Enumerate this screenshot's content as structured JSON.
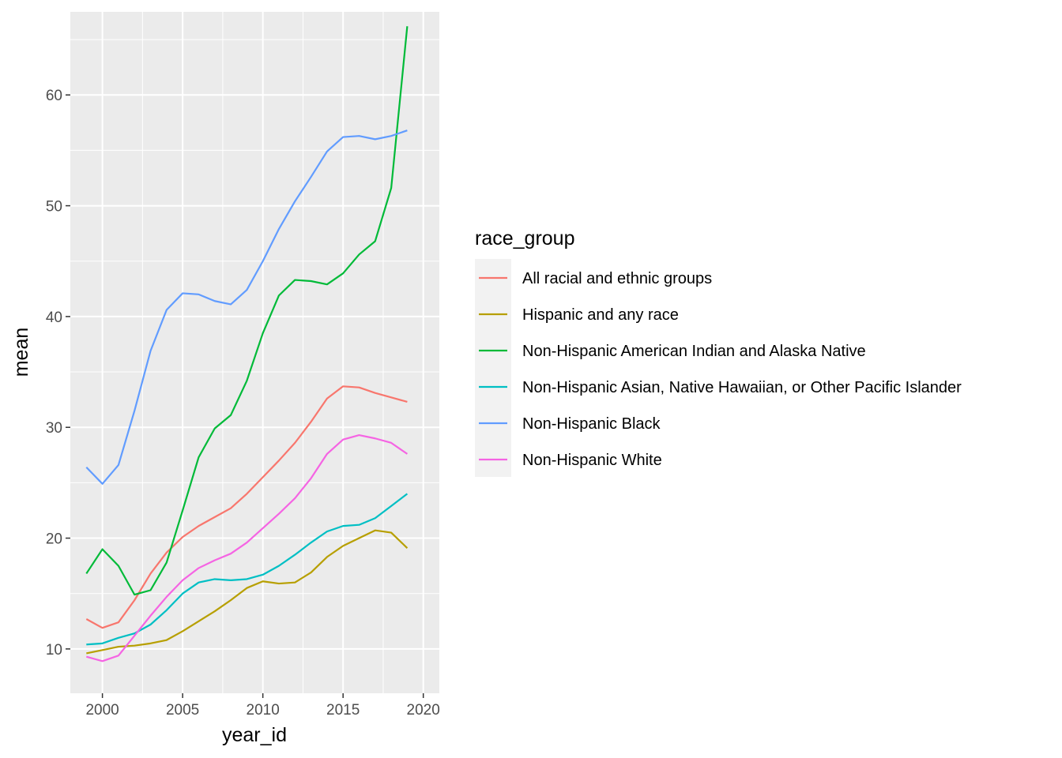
{
  "chart_data": {
    "type": "line",
    "xlabel": "year_id",
    "ylabel": "mean",
    "xlim": [
      1998,
      2021
    ],
    "ylim": [
      6.0,
      67.5
    ],
    "x_ticks": [
      2000,
      2005,
      2010,
      2015,
      2020
    ],
    "x_tick_labels": [
      "2000",
      "2005",
      "2010",
      "2015",
      "2020"
    ],
    "y_ticks": [
      10,
      20,
      30,
      40,
      50,
      60
    ],
    "y_tick_labels": [
      "10",
      "20",
      "30",
      "40",
      "50",
      "60"
    ],
    "grid": true,
    "legend_title": "race_group",
    "legend_position": "right",
    "x": [
      1999,
      2000,
      2001,
      2002,
      2003,
      2004,
      2005,
      2006,
      2007,
      2008,
      2009,
      2010,
      2011,
      2012,
      2013,
      2014,
      2015,
      2016,
      2017,
      2018,
      2019
    ],
    "series": [
      {
        "name": "All racial and ethnic groups",
        "color": "#F8766D",
        "values": [
          12.7,
          11.9,
          12.4,
          14.4,
          16.8,
          18.7,
          20.1,
          21.1,
          21.9,
          22.7,
          24.0,
          25.5,
          27.0,
          28.6,
          30.5,
          32.6,
          33.7,
          33.6,
          33.1,
          32.7,
          32.3
        ]
      },
      {
        "name": "Hispanic and any race",
        "color": "#B79F00",
        "values": [
          9.6,
          9.9,
          10.2,
          10.3,
          10.5,
          10.8,
          11.6,
          12.5,
          13.4,
          14.4,
          15.5,
          16.1,
          15.9,
          16.0,
          16.9,
          18.3,
          19.3,
          20.0,
          20.7,
          20.5,
          19.1
        ]
      },
      {
        "name": "Non-Hispanic American Indian and Alaska Native",
        "color": "#00BA38",
        "values": [
          16.8,
          19.0,
          17.5,
          14.9,
          15.3,
          17.8,
          22.5,
          27.3,
          29.9,
          31.1,
          34.2,
          38.5,
          41.9,
          43.3,
          43.2,
          42.9,
          43.9,
          45.6,
          46.8,
          51.6,
          66.2
        ]
      },
      {
        "name": "Non-Hispanic Asian, Native Hawaiian, or Other Pacific Islander",
        "color": "#00BFC4",
        "values": [
          10.4,
          10.5,
          11.0,
          11.4,
          12.2,
          13.5,
          15.0,
          16.0,
          16.3,
          16.2,
          16.3,
          16.7,
          17.5,
          18.5,
          19.6,
          20.6,
          21.1,
          21.2,
          21.8,
          22.9,
          24.0
        ]
      },
      {
        "name": "Non-Hispanic Black",
        "color": "#619CFF",
        "values": [
          26.4,
          24.9,
          26.6,
          31.5,
          36.9,
          40.6,
          42.1,
          42.0,
          41.4,
          41.1,
          42.4,
          45.0,
          47.9,
          50.4,
          52.6,
          54.9,
          56.2,
          56.3,
          56.0,
          56.3,
          56.8
        ]
      },
      {
        "name": "Non-Hispanic White",
        "color": "#F564E3",
        "values": [
          9.3,
          8.9,
          9.4,
          11.2,
          13.0,
          14.7,
          16.2,
          17.3,
          18.0,
          18.6,
          19.6,
          20.9,
          22.2,
          23.6,
          25.4,
          27.6,
          28.9,
          29.3,
          29.0,
          28.6,
          27.6
        ]
      }
    ]
  }
}
